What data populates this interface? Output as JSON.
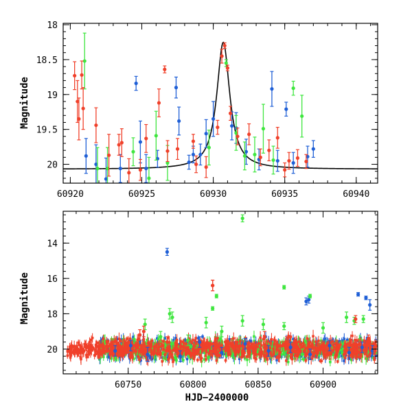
{
  "chart_data": [
    {
      "panel": "top",
      "type": "scatter",
      "title": "",
      "xlabel": "",
      "ylabel": "Magnitude",
      "xlim": [
        60919.5,
        60941.5
      ],
      "ylim": [
        20.27,
        17.98
      ],
      "y_inverted": true,
      "x_ticks": [
        60920,
        60925,
        60930,
        60935,
        60940
      ],
      "y_ticks": [
        18,
        18.5,
        19,
        19.5,
        20
      ],
      "grid": false,
      "legend": "none",
      "colors": {
        "blue": "#1f5fd6",
        "green": "#3fe63f",
        "red": "#f0402a",
        "model": "#000000"
      },
      "model_curve": {
        "type": "lorentzian-like",
        "peak_time": 60930.7,
        "baseline_mag": 20.07,
        "peak_mag": 18.25,
        "width_days": 0.55
      },
      "series": [
        {
          "color": "blue",
          "x": [
            60921.1,
            60921.8,
            60922.5,
            60923.5,
            60924.6,
            60924.9,
            60925.3,
            60926.1,
            60927.4,
            60927.6,
            60928.3,
            60928.6,
            60929.1,
            60929.5,
            60930.0,
            60931.3,
            60931.6,
            60932.3,
            60933.2,
            60934.1,
            60934.5,
            60935.1,
            60935.6,
            60936.6,
            60937.0
          ],
          "y": [
            19.88,
            20.0,
            20.21,
            20.06,
            18.84,
            19.68,
            20.06,
            19.92,
            18.9,
            19.38,
            19.97,
            19.86,
            19.86,
            19.56,
            19.35,
            19.45,
            19.48,
            19.82,
            19.93,
            18.92,
            19.95,
            19.21,
            19.98,
            19.89,
            19.78
          ],
          "err": [
            0.25,
            0.28,
            0.3,
            0.2,
            0.1,
            0.3,
            0.2,
            0.12,
            0.15,
            0.2,
            0.1,
            0.12,
            0.15,
            0.2,
            0.25,
            0.2,
            0.22,
            0.18,
            0.15,
            0.25,
            0.15,
            0.1,
            0.15,
            0.15,
            0.12
          ]
        },
        {
          "color": "green",
          "x": [
            60921.0,
            60921.9,
            60922.6,
            60924.4,
            60925.5,
            60926.0,
            60926.8,
            60929.7,
            60930.9,
            60931.6,
            60932.2,
            60932.9,
            60933.5,
            60934.2,
            60935.6,
            60936.2
          ],
          "y": [
            18.52,
            20.06,
            20.06,
            19.82,
            20.2,
            19.59,
            19.98,
            19.76,
            18.55,
            19.55,
            19.88,
            19.86,
            19.49,
            19.94,
            18.91,
            19.31
          ],
          "err": [
            0.4,
            0.3,
            0.3,
            0.2,
            0.3,
            0.35,
            0.25,
            0.25,
            0.05,
            0.25,
            0.2,
            0.25,
            0.35,
            0.2,
            0.1,
            0.3
          ],
          "marker": "x"
        },
        {
          "color": "red",
          "x": [
            60920.3,
            60920.5,
            60920.6,
            60920.8,
            60920.9,
            60921.8,
            60922.7,
            60923.4,
            60923.6,
            60924.1,
            60924.9,
            60925.3,
            60926.2,
            60926.6,
            60926.8,
            60927.5,
            60928.6,
            60928.8,
            60929.5,
            60930.3,
            60930.6,
            60930.8,
            60931.0,
            60931.2,
            60931.7,
            60932.5,
            60933.3,
            60933.9,
            60934.5,
            60935.0,
            60935.3,
            60935.9,
            60936.5
          ],
          "y": [
            18.73,
            19.1,
            19.35,
            18.72,
            19.2,
            19.44,
            19.87,
            19.72,
            19.69,
            20.12,
            20.08,
            19.63,
            19.12,
            18.64,
            19.81,
            19.78,
            19.67,
            20.0,
            20.04,
            19.47,
            18.45,
            18.3,
            18.62,
            19.27,
            19.6,
            19.57,
            19.9,
            19.8,
            19.62,
            20.08,
            19.95,
            19.91,
            19.96
          ],
          "err": [
            0.2,
            0.3,
            0.3,
            0.2,
            0.3,
            0.25,
            0.3,
            0.15,
            0.2,
            0.2,
            0.15,
            0.2,
            0.2,
            0.05,
            0.15,
            0.15,
            0.1,
            0.12,
            0.15,
            0.1,
            0.1,
            0.04,
            0.04,
            0.1,
            0.12,
            0.15,
            0.12,
            0.15,
            0.15,
            0.1,
            0.12,
            0.12,
            0.1
          ]
        }
      ]
    },
    {
      "panel": "bottom",
      "type": "scatter",
      "title": "",
      "xlabel": "HJD−2400000",
      "ylabel": "Magnitude",
      "xlim": [
        60700,
        60942
      ],
      "ylim": [
        21.4,
        12.2
      ],
      "y_inverted": true,
      "x_ticks": [
        60750,
        60800,
        60850,
        60900
      ],
      "y_ticks": [
        14,
        16,
        18,
        20
      ],
      "grid": false,
      "legend": "none",
      "colors": {
        "blue": "#1f5fd6",
        "green": "#3fe63f",
        "red": "#f0402a"
      },
      "baseline_mag": 20.0,
      "series": [
        {
          "color": "blue",
          "note": "dense survey points; outliers listed",
          "x": [
            60740,
            60752,
            60765,
            60780,
            60790,
            60805,
            60822,
            60840,
            60858,
            60875,
            60890,
            60905,
            60920,
            60930,
            60938,
            60887,
            60889,
            60927,
            60936,
            60933
          ],
          "y": [
            20.1,
            19.8,
            20.3,
            14.5,
            20.4,
            19.6,
            20.2,
            19.7,
            20.1,
            19.9,
            20.3,
            19.8,
            20.2,
            19.9,
            20.1,
            17.3,
            17.2,
            16.9,
            17.5,
            17.1
          ],
          "err": [
            0.3,
            0.3,
            0.4,
            0.2,
            0.3,
            0.3,
            0.3,
            0.3,
            0.3,
            0.3,
            0.3,
            0.3,
            0.3,
            0.3,
            0.3,
            0.2,
            0.2,
            0.1,
            0.3,
            0.1
          ]
        },
        {
          "color": "green",
          "note": "dense survey points; outliers listed",
          "x": [
            60763,
            60775,
            60784,
            60796,
            60810,
            60822,
            60838,
            60854,
            60870,
            60884,
            60900,
            60918,
            60815,
            60818,
            60838,
            60870,
            60890,
            60924,
            60931,
            60782
          ],
          "y": [
            18.6,
            19.3,
            18.2,
            19.5,
            18.5,
            19.0,
            12.6,
            18.6,
            16.5,
            20.3,
            18.8,
            18.2,
            17.7,
            17.0,
            18.4,
            18.7,
            17.0,
            18.4,
            18.3,
            18.0
          ],
          "err": [
            0.3,
            0.3,
            0.3,
            0.3,
            0.3,
            0.3,
            0.2,
            0.3,
            0.1,
            0.3,
            0.3,
            0.3,
            0.1,
            0.1,
            0.3,
            0.2,
            0.1,
            0.2,
            0.2,
            0.3
          ]
        },
        {
          "color": "red",
          "note": "dense survey points; outliers listed",
          "x": [
            60706,
            60712,
            60718,
            60728,
            60745,
            60762,
            60780,
            60800,
            60815,
            60830,
            60855,
            60872,
            60895,
            60910,
            60925,
            60935,
            60940,
            60815,
            60759
          ],
          "y": [
            20.0,
            20.2,
            19.9,
            20.1,
            20.1,
            19.0,
            19.6,
            20.0,
            16.4,
            19.7,
            19.3,
            19.6,
            20.2,
            20.0,
            18.3,
            19.4,
            20.1,
            16.4,
            19.2
          ],
          "err": [
            0.2,
            0.2,
            0.2,
            0.2,
            0.3,
            0.3,
            0.3,
            0.3,
            0.3,
            0.3,
            0.3,
            0.3,
            0.3,
            0.3,
            0.2,
            0.2,
            0.2,
            0.3,
            0.3
          ]
        }
      ]
    }
  ]
}
